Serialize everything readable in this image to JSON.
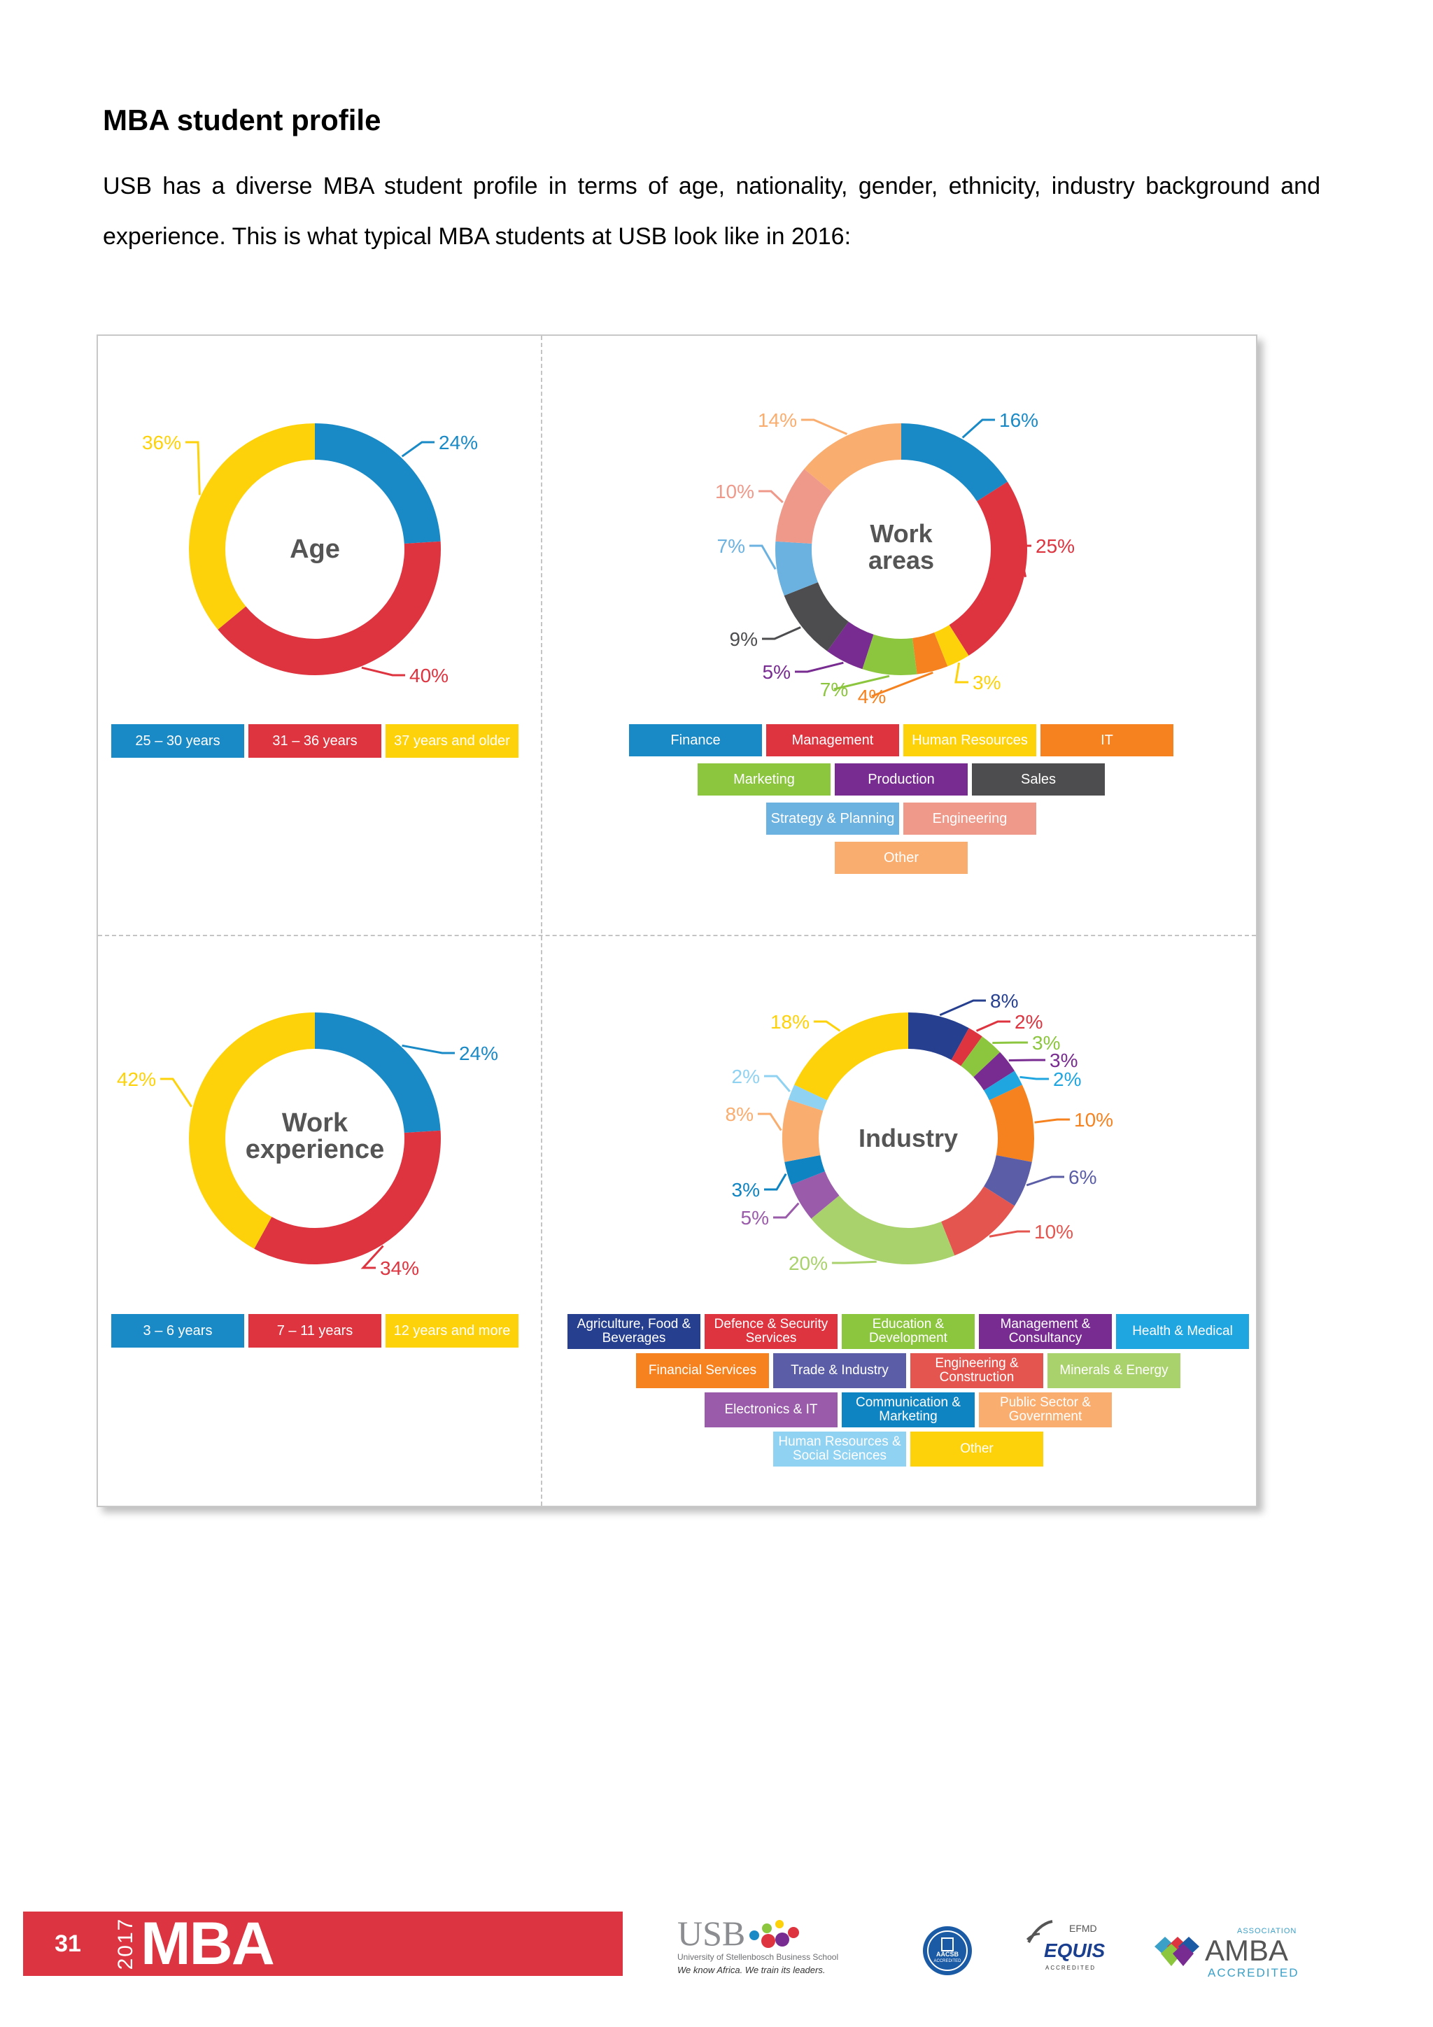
{
  "page": {
    "heading": "MBA student profile",
    "intro": "USB has a diverse MBA student profile in terms of age, nationality, gender, ethnicity, industry background and experience. This is what typical MBA students at USB look like in 2016:"
  },
  "chart_data": [
    {
      "type": "pie",
      "title": "Age",
      "categories": [
        "25 – 30 years",
        "31 – 36 years",
        "37 years and older"
      ],
      "values": [
        24,
        40,
        36
      ],
      "labels": [
        "24%",
        "40%",
        "36%"
      ],
      "colors": [
        "#1a8ac6",
        "#dd3440",
        "#fdd20a"
      ],
      "legend": "bottom"
    },
    {
      "type": "pie",
      "title": "Work areas",
      "categories": [
        "Finance",
        "Management",
        "Human Resources",
        "IT",
        "Marketing",
        "Production",
        "Sales",
        "Strategy & Planning",
        "Engineering",
        "Other"
      ],
      "values": [
        16,
        25,
        3,
        4,
        7,
        5,
        9,
        7,
        10,
        14
      ],
      "labels": [
        "16%",
        "25%",
        "3%",
        "4%",
        "7%",
        "5%",
        "9%",
        "7%",
        "10%",
        "14%"
      ],
      "colors": [
        "#1a8ac6",
        "#dd3440",
        "#fdd20a",
        "#f5821f",
        "#8cc63f",
        "#782b90",
        "#4d4d4f",
        "#6cb2e0",
        "#ef998a",
        "#f9ad6f"
      ],
      "legend": "bottom"
    },
    {
      "type": "pie",
      "title": "Work experience",
      "categories": [
        "3 – 6 years",
        "7 – 11 years",
        "12 years and more"
      ],
      "values": [
        24,
        34,
        42
      ],
      "labels": [
        "24%",
        "34%",
        "42%"
      ],
      "colors": [
        "#1a8ac6",
        "#dd3440",
        "#fdd20a"
      ],
      "legend": "bottom"
    },
    {
      "type": "pie",
      "title": "Industry",
      "categories": [
        "Agriculture, Food & Beverages",
        "Defence & Security Services",
        "Education & Development",
        "Management & Consultancy",
        "Health & Medical",
        "Financial Services",
        "Trade & Industry",
        "Engineering & Construction",
        "Minerals & Energy",
        "Electronics & IT",
        "Communication & Marketing",
        "Public Sector & Government",
        "Human Resources & Social Sciences",
        "Other"
      ],
      "values": [
        8,
        2,
        3,
        3,
        2,
        10,
        6,
        10,
        20,
        5,
        3,
        8,
        2,
        18
      ],
      "labels": [
        "8%",
        "2%",
        "3%",
        "3%",
        "2%",
        "10%",
        "6%",
        "10%",
        "20%",
        "5%",
        "3%",
        "8%",
        "2%",
        "18%"
      ],
      "colors": [
        "#263f8f",
        "#dd3440",
        "#8cc63f",
        "#782b90",
        "#1fa5e0",
        "#f5821f",
        "#5b5ea6",
        "#e5554f",
        "#a9d26c",
        "#9a5baa",
        "#0e84c2",
        "#f9ad6f",
        "#8fd2f2",
        "#fdd20a"
      ],
      "legend": "bottom"
    }
  ],
  "footer": {
    "page_number": "31",
    "year": "2017",
    "program": "MBA",
    "logo_usb": "USB",
    "usb_name": "University of Stellenbosch Business School",
    "usb_tagline": "We know Africa. We train its leaders.",
    "aacsb": "AACSB",
    "aacsb_sub": "ACCREDITED",
    "efmd": "EFMD",
    "equis": "EQUIS",
    "equis_sub": "ACCREDITED",
    "amba_top": "ASSOCIATION",
    "amba": "AMBA",
    "amba_sub": "ACCREDITED"
  }
}
